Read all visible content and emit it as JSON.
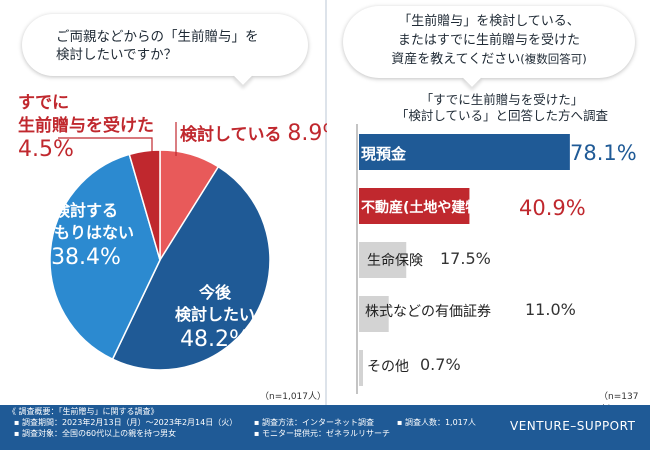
{
  "left": {
    "question_line1": "ご両親などからの「生前贈与」を",
    "question_line2": "検討したいですか？",
    "n": "（n=1,017人）"
  },
  "right": {
    "question_line1": "「生前贈与」を検討している、",
    "question_line2": "またはすでに生前贈与を受けた",
    "question_line3": "資産を教えてください",
    "question_note": "(複数回答可)",
    "sub_line1": "「すでに生前贈与を受けた」",
    "sub_line2": "「検討している」と回答した方へ調査",
    "n": "（n=137人）"
  },
  "chart_data": [
    {
      "type": "pie",
      "title": "ご両親などからの「生前贈与」を検討したいですか？",
      "slices": [
        {
          "label": "検討している",
          "value": 8.9,
          "pct": "8.9%",
          "color": "#e85a5a"
        },
        {
          "label": "今後検討したい",
          "value": 48.2,
          "pct": "48.2%",
          "color": "#1f5a96"
        },
        {
          "label": "検討するつもりはない",
          "value": 38.4,
          "pct": "38.4%",
          "color": "#2c8ad0"
        },
        {
          "label": "すでに生前贈与を受けた",
          "value": 4.5,
          "pct": "4.5%",
          "color": "#c0282e"
        }
      ],
      "labels": {
        "received_line1": "すでに",
        "received_line2": "生前贈与を受けた",
        "considering": "検討している",
        "not_line1": "検討する",
        "not_line2": "つもりはない",
        "future_line1": "今後",
        "future_line2": "検討したい"
      }
    },
    {
      "type": "bar",
      "title": "「生前贈与」を検討している、またはすでに生前贈与を受けた資産を教えてください(複数回答可)",
      "xlim": [
        0,
        100
      ],
      "categories": [
        "現預金",
        "不動産(土地や建物)",
        "生命保険",
        "株式などの有価証券",
        "その他"
      ],
      "values": [
        78.1,
        40.9,
        17.5,
        11.0,
        0.7
      ],
      "value_labels": [
        "78.1%",
        "40.9%",
        "17.5%",
        "11.0%",
        "0.7%"
      ],
      "colors": [
        "#1f5a96",
        "#c0282e",
        "#d3d3d3",
        "#d3d3d3",
        "#d3d3d3"
      ]
    }
  ],
  "footer": {
    "overview": "《 調査概要：「生前贈与」に関する調査》",
    "period": "▪ 調査期間：2023年2月13日（月）〜2023年2月14日（火）",
    "method": "▪ 調査方法：インターネット調査",
    "count": "▪ 調査人数：1,017人",
    "target": "▪ 調査対象：全国の60代以上の親を持つ男女",
    "provider": "▪ モニター提供元：ゼネラルリサーチ",
    "brand": "VENTURE–SUPPORT"
  }
}
